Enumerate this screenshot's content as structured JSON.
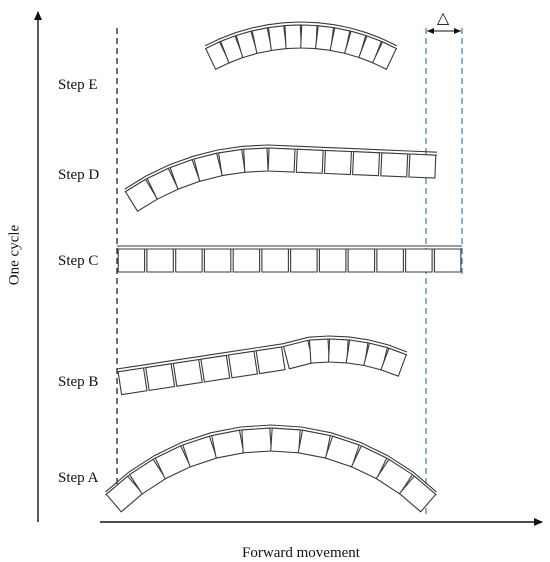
{
  "labels": {
    "y_axis": "One cycle",
    "x_axis": "Forward movement",
    "delta": "△",
    "steps": {
      "e": "Step E",
      "d": "Step D",
      "c": "Step C",
      "b": "Step B",
      "a": "Step A"
    }
  },
  "colors": {
    "axis": "#111111",
    "segment_stroke": "#3a3a3a",
    "black_dashed_line": "#111111",
    "blue_dashed_lines": "#2f7fc1"
  }
}
